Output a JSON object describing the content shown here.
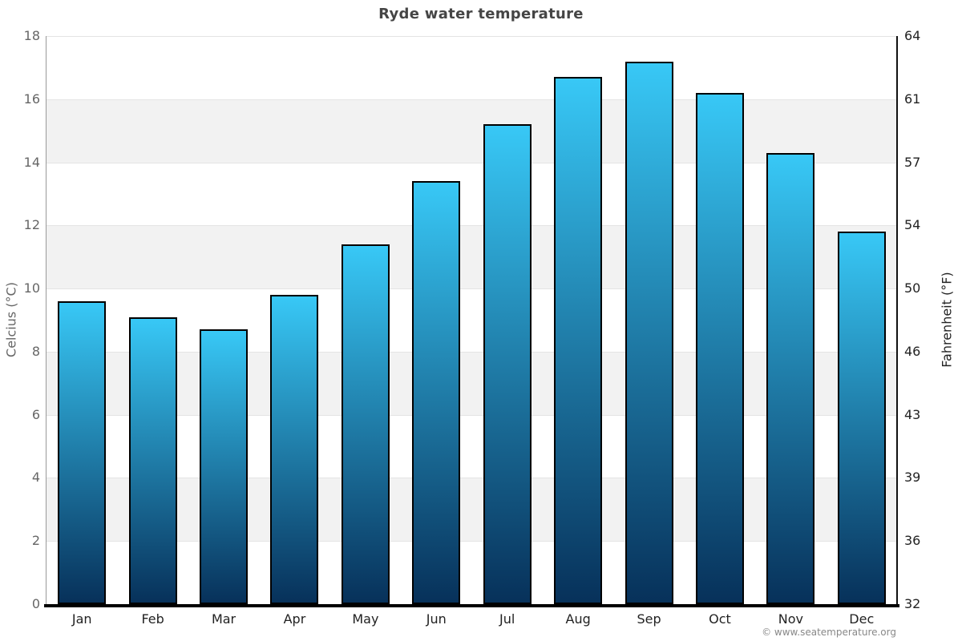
{
  "attribution": {
    "text": "© www.seatemperature.org"
  },
  "chart_data": {
    "type": "bar",
    "title": "Ryde water temperature",
    "categories": [
      "Jan",
      "Feb",
      "Mar",
      "Apr",
      "May",
      "Jun",
      "Jul",
      "Aug",
      "Sep",
      "Oct",
      "Nov",
      "Dec"
    ],
    "values": [
      9.6,
      9.1,
      8.7,
      9.8,
      11.4,
      13.4,
      15.2,
      16.7,
      17.2,
      16.2,
      14.3,
      11.8
    ],
    "series_name": "Water temperature",
    "xlabel": "",
    "ylabel_left": "Celcius (°C)",
    "ylabel_right": "Fahrenheit (°F)",
    "ylim_left": [
      0,
      18
    ],
    "yticks_left": [
      0,
      2,
      4,
      6,
      8,
      10,
      12,
      14,
      16,
      18
    ],
    "yticks_right_labels": [
      "32",
      "36",
      "39",
      "43",
      "46",
      "50",
      "54",
      "57",
      "61",
      "64"
    ],
    "legend": "none",
    "grid": "horizontal alternating bands",
    "colors": {
      "bar_gradient_top": "#38c8f6",
      "bar_gradient_bottom": "#07315a",
      "bar_border": "#000000",
      "band_gray": "#f2f2f2",
      "band_white": "#ffffff",
      "gridline": "#e4e4e4",
      "axis_left": "#999999",
      "axis_right": "#111111",
      "axis_bottom": "#000000",
      "title_text": "#454545",
      "tick_left_text": "#666666",
      "tick_right_text": "#222222",
      "month_text": "#222222",
      "attribution_text": "#888888"
    }
  }
}
